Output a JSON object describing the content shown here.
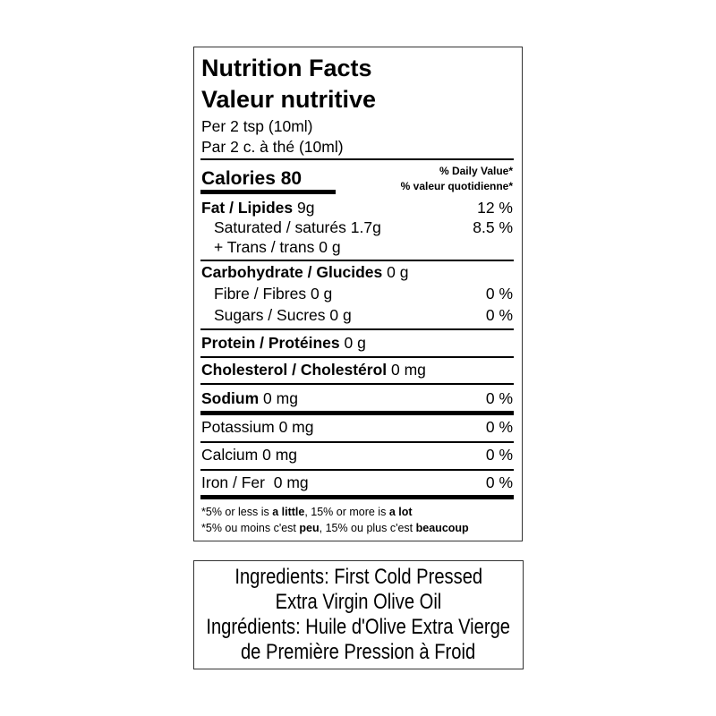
{
  "title_en": "Nutrition Facts",
  "title_fr": "Valeur nutritive",
  "serving_en": "Per 2 tsp (10ml)",
  "serving_fr": "Par 2  c. à thé (10ml)",
  "calories": {
    "label": "Calories",
    "value": "80"
  },
  "dv_en": "% Daily Value*",
  "dv_fr": "% valeur quotidienne*",
  "rows": [
    {
      "label": "Fat / Lipides",
      "amount": "9g",
      "dv": "12 %"
    },
    {
      "label": "Saturated / saturés",
      "amount": "1.7g",
      "dv": "8.5 %"
    },
    {
      "label": "+ Trans / trans",
      "amount": "0 g"
    },
    {
      "label": "Carbohydrate / Glucides",
      "amount": "0 g"
    },
    {
      "label": "Fibre / Fibres",
      "amount": "0 g",
      "dv": "0 %"
    },
    {
      "label": "Sugars / Sucres",
      "amount": "0 g",
      "dv": "0 %"
    },
    {
      "label": "Protein / Protéines",
      "amount": "0 g"
    },
    {
      "label": "Cholesterol / Cholestérol",
      "amount": "0 mg"
    },
    {
      "label": "Sodium",
      "amount": "0 mg",
      "dv": "0 %"
    },
    {
      "label": "Potassium",
      "amount": "0 mg",
      "dv": "0 %"
    },
    {
      "label": "Calcium",
      "amount": "0 mg",
      "dv": "0 %"
    },
    {
      "label": "Iron / Fer ",
      "amount": "0 mg",
      "dv": "0 %"
    }
  ],
  "footnote_en": {
    "a": "*5% or less is ",
    "b": "a little",
    "c": ", 15% or more is ",
    "d": "a lot"
  },
  "footnote_fr": {
    "a": "*5% ou moins c'est ",
    "b": "peu",
    "c": ", 15% ou plus c'est ",
    "d": "beaucoup"
  },
  "ingredients": [
    "Ingredients: First Cold Pressed",
    "Extra Virgin Olive Oil",
    "Ingrédients: Huile d'Olive Extra Vierge",
    "de Première Pression à Froid"
  ]
}
